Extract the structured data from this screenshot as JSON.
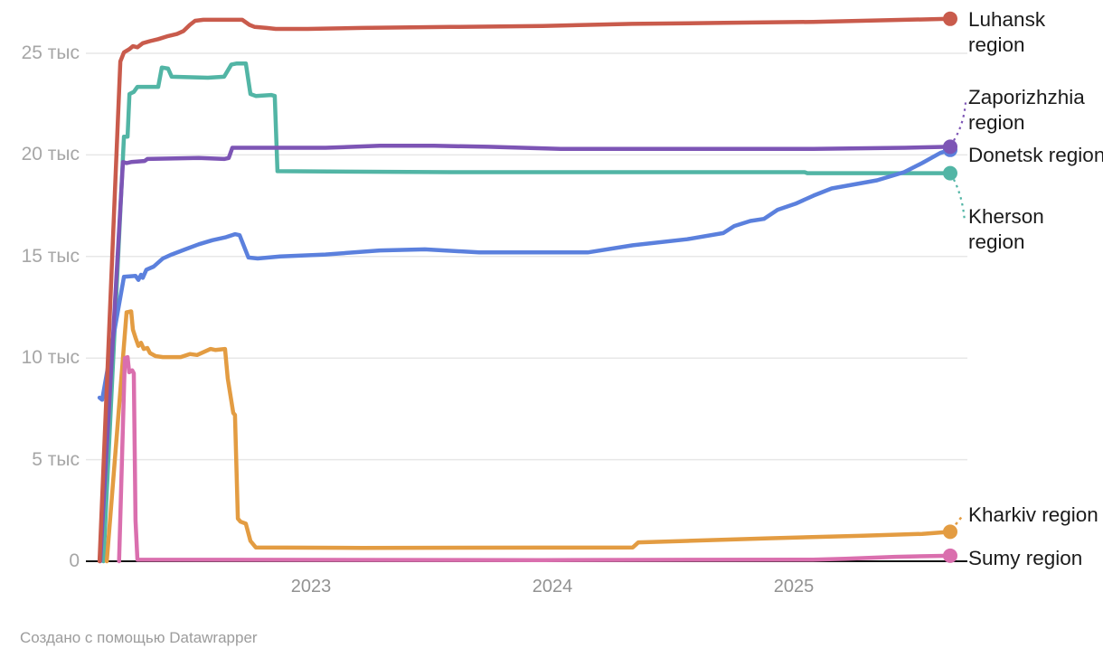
{
  "chart_data": {
    "type": "line",
    "title": "",
    "grid": true,
    "legend_position": "direct-labels-right",
    "x_axis": {
      "ticks": [
        "2023",
        "2024",
        "2025"
      ],
      "tick_years": [
        2023,
        2024,
        2025
      ],
      "range_years": [
        2022.05,
        2025.75
      ]
    },
    "y_axis": {
      "ticks": [
        "0",
        "5 тыс",
        "10 тыс",
        "15 тыс",
        "20 тыс",
        "25 тыс"
      ],
      "tick_values": [
        0,
        5,
        10,
        15,
        20,
        25
      ],
      "unit": "тыс",
      "ylim": [
        0,
        27
      ]
    },
    "series": [
      {
        "name": "Luhansk region",
        "color": "#c95b4c",
        "leader": "none",
        "end_value_thousands": 26.7,
        "points": [
          [
            2022.124,
            0
          ],
          [
            2022.21,
            24.6
          ],
          [
            2022.225,
            25.05
          ],
          [
            2022.247,
            25.2
          ],
          [
            2022.262,
            25.35
          ],
          [
            2022.281,
            25.3
          ],
          [
            2022.303,
            25.5
          ],
          [
            2022.333,
            25.6
          ],
          [
            2022.367,
            25.7
          ],
          [
            2022.408,
            25.85
          ],
          [
            2022.445,
            25.95
          ],
          [
            2022.472,
            26.1
          ],
          [
            2022.498,
            26.4
          ],
          [
            2022.52,
            26.6
          ],
          [
            2022.554,
            26.65
          ],
          [
            2022.715,
            26.65
          ],
          [
            2022.745,
            26.4
          ],
          [
            2022.767,
            26.3
          ],
          [
            2022.816,
            26.25
          ],
          [
            2022.854,
            26.2
          ],
          [
            2022.985,
            26.2
          ],
          [
            2023.21,
            26.25
          ],
          [
            2023.58,
            26.3
          ],
          [
            2023.96,
            26.35
          ],
          [
            2024.33,
            26.45
          ],
          [
            2024.71,
            26.5
          ],
          [
            2025.08,
            26.55
          ],
          [
            2025.46,
            26.65
          ],
          [
            2025.648,
            26.7
          ]
        ]
      },
      {
        "name": "Zaporizhzhia region",
        "color": "#7d55b5",
        "leader": "up",
        "end_value_thousands": 20.4,
        "points": [
          [
            2022.127,
            0
          ],
          [
            2022.221,
            19.65
          ],
          [
            2022.236,
            19.6
          ],
          [
            2022.255,
            19.65
          ],
          [
            2022.311,
            19.7
          ],
          [
            2022.322,
            19.8
          ],
          [
            2022.535,
            19.85
          ],
          [
            2022.64,
            19.8
          ],
          [
            2022.659,
            19.85
          ],
          [
            2022.674,
            20.35
          ],
          [
            2023.06,
            20.35
          ],
          [
            2023.285,
            20.45
          ],
          [
            2023.51,
            20.45
          ],
          [
            2023.734,
            20.4
          ],
          [
            2024.034,
            20.3
          ],
          [
            2024.7,
            20.3
          ],
          [
            2025.08,
            20.3
          ],
          [
            2025.46,
            20.35
          ],
          [
            2025.648,
            20.4
          ]
        ]
      },
      {
        "name": "Donetsk region",
        "color": "#5b80dd",
        "leader": "none",
        "end_value_thousands": 20.25,
        "points": [
          [
            2022.124,
            8.05
          ],
          [
            2022.135,
            7.95
          ],
          [
            2022.225,
            14.0
          ],
          [
            2022.273,
            14.05
          ],
          [
            2022.285,
            13.85
          ],
          [
            2022.296,
            14.1
          ],
          [
            2022.303,
            13.95
          ],
          [
            2022.318,
            14.35
          ],
          [
            2022.348,
            14.5
          ],
          [
            2022.386,
            14.9
          ],
          [
            2022.423,
            15.1
          ],
          [
            2022.479,
            15.35
          ],
          [
            2022.535,
            15.6
          ],
          [
            2022.591,
            15.8
          ],
          [
            2022.648,
            15.95
          ],
          [
            2022.685,
            16.1
          ],
          [
            2022.704,
            16.05
          ],
          [
            2022.741,
            14.95
          ],
          [
            2022.779,
            14.9
          ],
          [
            2022.872,
            15.0
          ],
          [
            2023.06,
            15.1
          ],
          [
            2023.285,
            15.3
          ],
          [
            2023.472,
            15.35
          ],
          [
            2023.697,
            15.2
          ],
          [
            2024.146,
            15.2
          ],
          [
            2024.333,
            15.55
          ],
          [
            2024.558,
            15.85
          ],
          [
            2024.708,
            16.15
          ],
          [
            2024.753,
            16.5
          ],
          [
            2024.82,
            16.75
          ],
          [
            2024.876,
            16.85
          ],
          [
            2024.933,
            17.3
          ],
          [
            2025.007,
            17.6
          ],
          [
            2025.082,
            18.0
          ],
          [
            2025.157,
            18.35
          ],
          [
            2025.251,
            18.55
          ],
          [
            2025.345,
            18.75
          ],
          [
            2025.457,
            19.15
          ],
          [
            2025.532,
            19.6
          ],
          [
            2025.607,
            20.1
          ],
          [
            2025.648,
            20.25
          ]
        ]
      },
      {
        "name": "Kherson region",
        "color": "#52b5a5",
        "leader": "down",
        "end_value_thousands": 19.1,
        "points": [
          [
            2022.14,
            0
          ],
          [
            2022.225,
            20.9
          ],
          [
            2022.24,
            20.9
          ],
          [
            2022.248,
            23.0
          ],
          [
            2022.266,
            23.1
          ],
          [
            2022.281,
            23.35
          ],
          [
            2022.367,
            23.35
          ],
          [
            2022.382,
            24.3
          ],
          [
            2022.408,
            24.25
          ],
          [
            2022.423,
            23.85
          ],
          [
            2022.573,
            23.8
          ],
          [
            2022.64,
            23.85
          ],
          [
            2022.67,
            24.45
          ],
          [
            2022.693,
            24.5
          ],
          [
            2022.73,
            24.5
          ],
          [
            2022.749,
            23.0
          ],
          [
            2022.771,
            22.9
          ],
          [
            2022.835,
            22.95
          ],
          [
            2022.85,
            22.9
          ],
          [
            2022.861,
            19.2
          ],
          [
            2023.58,
            19.15
          ],
          [
            2025.045,
            19.15
          ],
          [
            2025.056,
            19.1
          ],
          [
            2025.648,
            19.1
          ]
        ]
      },
      {
        "name": "Kharkiv region",
        "color": "#e39c42",
        "leader": "short-up",
        "end_value_thousands": 1.45,
        "points": [
          [
            2022.154,
            0
          ],
          [
            2022.236,
            12.25
          ],
          [
            2022.255,
            12.3
          ],
          [
            2022.262,
            11.4
          ],
          [
            2022.273,
            11.0
          ],
          [
            2022.285,
            10.6
          ],
          [
            2022.296,
            10.75
          ],
          [
            2022.307,
            10.45
          ],
          [
            2022.322,
            10.5
          ],
          [
            2022.333,
            10.25
          ],
          [
            2022.356,
            10.1
          ],
          [
            2022.386,
            10.05
          ],
          [
            2022.46,
            10.05
          ],
          [
            2022.498,
            10.2
          ],
          [
            2022.528,
            10.15
          ],
          [
            2022.584,
            10.45
          ],
          [
            2022.603,
            10.4
          ],
          [
            2022.644,
            10.45
          ],
          [
            2022.655,
            9.0
          ],
          [
            2022.678,
            7.3
          ],
          [
            2022.685,
            7.2
          ],
          [
            2022.697,
            2.1
          ],
          [
            2022.708,
            1.95
          ],
          [
            2022.73,
            1.85
          ],
          [
            2022.749,
            1.0
          ],
          [
            2022.771,
            0.68
          ],
          [
            2023.21,
            0.66
          ],
          [
            2023.96,
            0.67
          ],
          [
            2024.333,
            0.68
          ],
          [
            2024.356,
            0.93
          ],
          [
            2024.558,
            1.0
          ],
          [
            2024.895,
            1.13
          ],
          [
            2025.27,
            1.25
          ],
          [
            2025.532,
            1.35
          ],
          [
            2025.648,
            1.45
          ]
        ]
      },
      {
        "name": "Sumy region",
        "color": "#da6fae",
        "leader": "none",
        "end_value_thousands": 0.27,
        "points": [
          [
            2022.205,
            0
          ],
          [
            2022.229,
            10.0
          ],
          [
            2022.24,
            10.05
          ],
          [
            2022.247,
            9.3
          ],
          [
            2022.259,
            9.4
          ],
          [
            2022.266,
            9.25
          ],
          [
            2022.273,
            2.0
          ],
          [
            2022.281,
            0.08
          ],
          [
            2023.96,
            0.06
          ],
          [
            2025.08,
            0.08
          ],
          [
            2025.213,
            0.12
          ],
          [
            2025.42,
            0.22
          ],
          [
            2025.57,
            0.26
          ],
          [
            2025.648,
            0.27
          ]
        ]
      }
    ]
  },
  "footer": {
    "attribution": "Создано с помощью Datawrapper"
  }
}
